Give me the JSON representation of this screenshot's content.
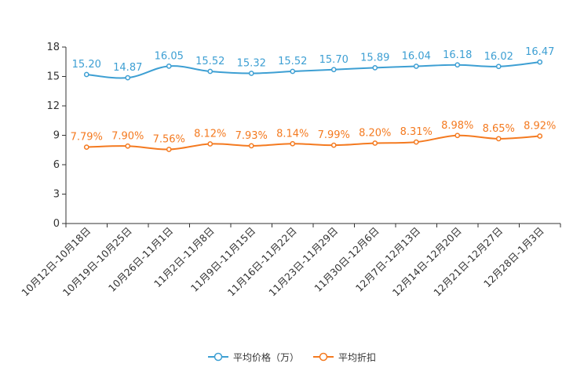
{
  "chart_data": {
    "type": "line",
    "title": "",
    "xlabel": "",
    "ylabel": "",
    "ylim": [
      0,
      18
    ],
    "yticks": [
      0,
      3,
      6,
      9,
      12,
      15,
      18
    ],
    "grid": false,
    "legend_position": "bottom",
    "categories": [
      "10月12日-10月18日",
      "10月19日-10月25日",
      "10月26日-11月1日",
      "11月2日-11月8日",
      "11月9日-11月15日",
      "11月16日-11月22日",
      "11月23日-11月29日",
      "11月30日-12月6日",
      "12月7日-12月13日",
      "12月14日-12月20日",
      "12月21日-12月27日",
      "12月28日-1月3日"
    ],
    "series": [
      {
        "name": "平均价格（万）",
        "color": "#3d9fd3",
        "values": [
          15.2,
          14.87,
          16.05,
          15.52,
          15.32,
          15.52,
          15.7,
          15.89,
          16.04,
          16.18,
          16.02,
          16.47
        ],
        "labels": [
          "15.20",
          "14.87",
          "16.05",
          "15.52",
          "15.32",
          "15.52",
          "15.70",
          "15.89",
          "16.04",
          "16.18",
          "16.02",
          "16.47"
        ]
      },
      {
        "name": "平均折扣",
        "color": "#f47a20",
        "values": [
          7.79,
          7.9,
          7.56,
          8.12,
          7.93,
          8.14,
          7.99,
          8.2,
          8.31,
          8.98,
          8.65,
          8.92
        ],
        "labels": [
          "7.79%",
          "7.90%",
          "7.56%",
          "8.12%",
          "7.93%",
          "8.14%",
          "7.99%",
          "8.20%",
          "8.31%",
          "8.98%",
          "8.65%",
          "8.92%"
        ]
      }
    ]
  }
}
